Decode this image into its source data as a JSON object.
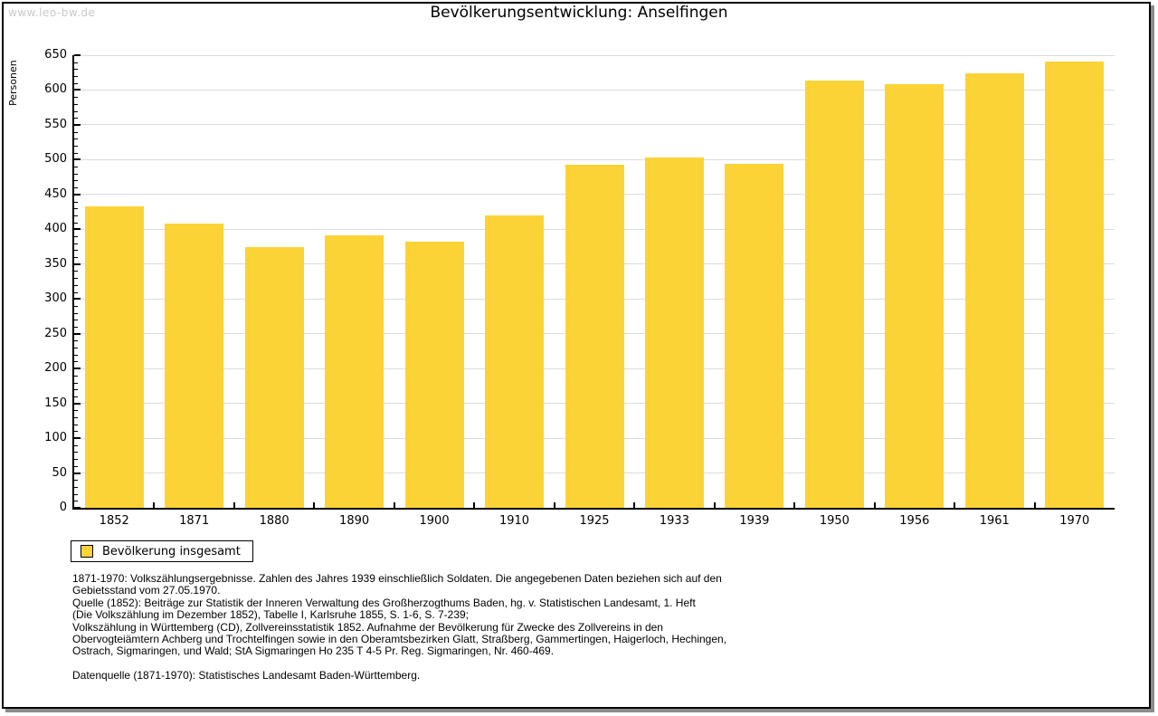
{
  "watermark": "www.leo-bw.de",
  "chart_data": {
    "type": "bar",
    "title": "Bevölkerungsentwicklung: Anselfingen",
    "categories": [
      "1852",
      "1871",
      "1880",
      "1890",
      "1900",
      "1910",
      "1925",
      "1933",
      "1939",
      "1950",
      "1956",
      "1961",
      "1970"
    ],
    "values": [
      433,
      408,
      374,
      391,
      382,
      420,
      493,
      503,
      494,
      614,
      609,
      624,
      641
    ],
    "series_name": "Bevölkerung insgesamt",
    "xlabel": "",
    "ylabel": "Personen",
    "ylim": [
      0,
      650
    ],
    "ytick_step": 50,
    "y_minor_step": 10,
    "grid": true,
    "grid_color": "#dcdcdc",
    "bar_color": "#fcd336",
    "legend_position": "bottom-left"
  },
  "legend": {
    "label": "Bevölkerung insgesamt",
    "swatch_color": "#fcd336"
  },
  "footnotes": {
    "block": [
      "1871-1970: Volkszählungsergebnisse. Zahlen des Jahres 1939 einschließlich Soldaten. Die angegebenen Daten beziehen sich auf den",
      "Gebietsstand vom 27.05.1970.",
      "Quelle (1852): Beiträge zur Statistik der Inneren Verwaltung des Großherzogthums Baden, hg. v. Statistischen Landesamt, 1. Heft",
      "(Die Volkszählung im Dezember 1852), Tabelle I, Karlsruhe 1855, S. 1-6, S. 7-239;",
      "Volkszählung in Württemberg (CD), Zollvereinsstatistik 1852. Aufnahme der Bevölkerung für Zwecke des Zollvereins in den",
      "Obervogteiämtern Achberg und Trochtelfingen sowie in den Oberamtsbezirken Glatt, Straßberg, Gammertingen, Haigerloch, Hechingen,",
      "Ostrach, Sigmaringen, und Wald; StA Sigmaringen Ho 235 T 4-5 Pr. Reg. Sigmaringen, Nr. 460-469."
    ],
    "datasource": "Datenquelle (1871-1970): Statistisches Landesamt Baden-Württemberg."
  }
}
